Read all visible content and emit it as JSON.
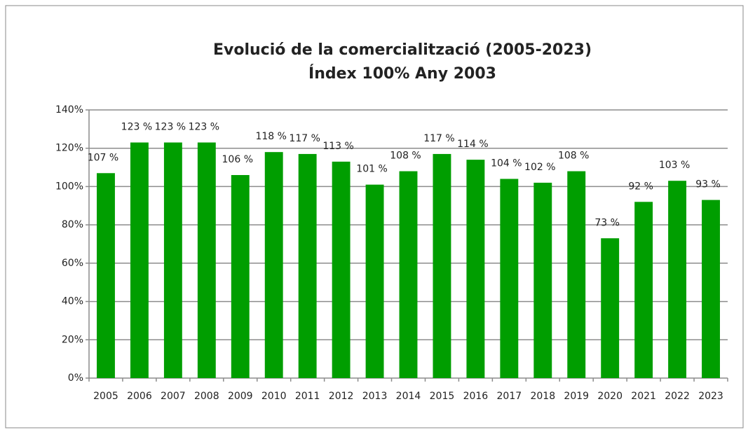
{
  "chart_data": {
    "type": "bar",
    "title": "Evolució de la comercialització (2005-2023)",
    "subtitle": "Índex 100% Any 2003",
    "categories": [
      "2005",
      "2006",
      "2007",
      "2008",
      "2009",
      "2010",
      "2011",
      "2012",
      "2013",
      "2014",
      "2015",
      "2016",
      "2017",
      "2018",
      "2019",
      "2020",
      "2021",
      "2022",
      "2023"
    ],
    "values": [
      107,
      123,
      123,
      123,
      106,
      118,
      117,
      113,
      101,
      108,
      117,
      114,
      104,
      102,
      108,
      73,
      92,
      103,
      93
    ],
    "value_labels": [
      "107 %",
      "123 %",
      "123 %",
      "123 %",
      "106 %",
      "118 %",
      "117 %",
      "113 %",
      "101 %",
      "108 %",
      "117 %",
      "114 %",
      "104 %",
      "102 %",
      "108 %",
      "73 %",
      "92 %",
      "103 %",
      "93 %"
    ],
    "color": "#009e00",
    "ylim": [
      0,
      140
    ],
    "yticks": [
      {
        "value": 0,
        "label": "0%"
      },
      {
        "value": 20,
        "label": "20%"
      },
      {
        "value": 40,
        "label": "40%"
      },
      {
        "value": 60,
        "label": "60%"
      },
      {
        "value": 80,
        "label": "80%"
      },
      {
        "value": 100,
        "label": "100%"
      },
      {
        "value": 120,
        "label": "120%"
      },
      {
        "value": 140,
        "label": "140%"
      }
    ],
    "grid": true
  }
}
